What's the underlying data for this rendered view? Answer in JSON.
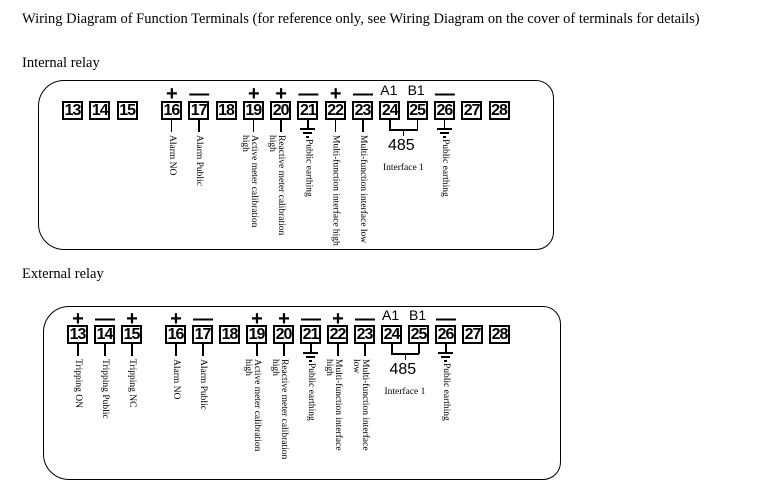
{
  "title": "Wiring Diagram of Function Terminals (for reference only, see Wiring Diagram on the cover of terminals for details)",
  "sections": [
    {
      "heading": "Internal relay",
      "signs": {
        "16": "+",
        "17": "—",
        "19": "+",
        "20": "+",
        "21": "—",
        "22": "+",
        "23": "—",
        "26": "—"
      },
      "labels": {
        "16": [
          "Alarm NO"
        ],
        "17": [
          "Alarm Public"
        ],
        "19": [
          "Active meter calibration",
          "high"
        ],
        "20": [
          "Reactive meter calibration",
          "high"
        ],
        "21": [
          "Public earthing"
        ],
        "22": [
          "Multi-function interface high"
        ],
        "23": [
          "Multi-function interface low"
        ],
        "26": [
          "Public earthing"
        ]
      }
    },
    {
      "heading": "External relay",
      "signs": {
        "13": "+",
        "14": "—",
        "15": "+",
        "16": "+",
        "17": "—",
        "19": "+",
        "20": "+",
        "21": "—",
        "22": "+",
        "23": "—",
        "26": "—"
      },
      "labels": {
        "13": [
          "Tripping ON"
        ],
        "14": [
          "Tripping Public"
        ],
        "15": [
          "Tripping NC"
        ],
        "16": [
          "Alarm NO"
        ],
        "17": [
          "Alarm Public"
        ],
        "19": [
          "Active meter calibration",
          "high"
        ],
        "20": [
          "Reactive meter calibration",
          "high"
        ],
        "21": [
          "Public earthing"
        ],
        "22": [
          "Multi-function interface",
          "high"
        ],
        "23": [
          "Multi-function interface",
          "low"
        ],
        "26": [
          "Public earthing"
        ]
      }
    }
  ],
  "terminals": [
    "13",
    "14",
    "15",
    "16",
    "17",
    "18",
    "19",
    "20",
    "21",
    "22",
    "23",
    "24",
    "25",
    "26",
    "27",
    "28"
  ],
  "a1_label": "A1",
  "b1_label": "B1",
  "rs485": "485",
  "interface": "Interface 1",
  "earth_terminals": [
    "21",
    "26"
  ],
  "icons": {
    "earth": "ground-symbol-icon"
  }
}
